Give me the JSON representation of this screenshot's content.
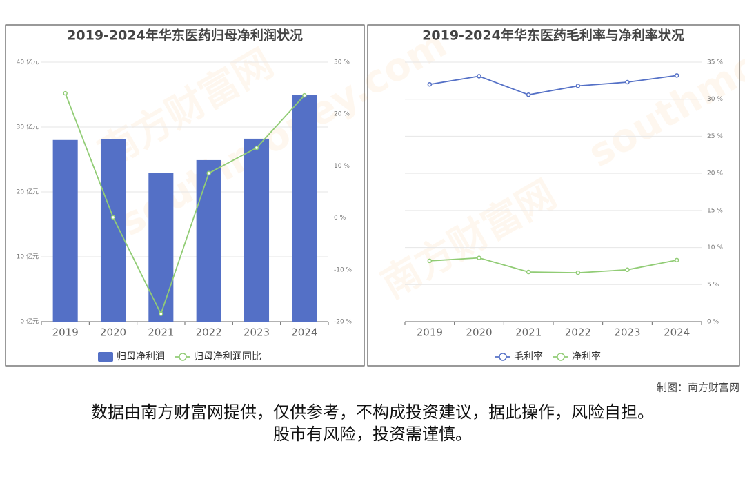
{
  "chart_data": [
    {
      "type": "bar",
      "title": "2019-2024年华东医药归母净利润状况",
      "categories": [
        "2019",
        "2020",
        "2021",
        "2022",
        "2023",
        "2024"
      ],
      "series": [
        {
          "name": "归母净利润",
          "type": "bar",
          "axis": "y",
          "color": "#5470c6",
          "values": [
            28.0,
            28.1,
            22.9,
            24.9,
            28.2,
            35.0
          ]
        },
        {
          "name": "归母净利润同比",
          "type": "line",
          "axis": "y2",
          "color": "#91cc75",
          "values": [
            24.0,
            0.1,
            -18.5,
            8.6,
            13.5,
            23.6
          ]
        }
      ],
      "ylim": [
        0,
        40
      ],
      "yticks": [
        {
          "value": 0,
          "label": "0 亿元"
        },
        {
          "value": 10,
          "label": "10 亿元"
        },
        {
          "value": 20,
          "label": "20 亿元"
        },
        {
          "value": 30,
          "label": "30 亿元"
        },
        {
          "value": 40,
          "label": "40 亿元"
        }
      ],
      "y2lim": [
        -20,
        30
      ],
      "y2ticks": [
        {
          "value": -20,
          "label": "-20 %"
        },
        {
          "value": -10,
          "label": "-10 %"
        },
        {
          "value": 0,
          "label": "0 %"
        },
        {
          "value": 10,
          "label": "10 %"
        },
        {
          "value": 20,
          "label": "20 %"
        },
        {
          "value": 30,
          "label": "30 %"
        }
      ],
      "grid": true
    },
    {
      "type": "line",
      "title": "2019-2024年华东医药毛利率与净利率状况",
      "categories": [
        "2019",
        "2020",
        "2021",
        "2022",
        "2023",
        "2024"
      ],
      "series": [
        {
          "name": "毛利率",
          "type": "line",
          "axis": "y2",
          "color": "#5470c6",
          "values": [
            32.0,
            33.1,
            30.6,
            31.8,
            32.3,
            33.2
          ]
        },
        {
          "name": "净利率",
          "type": "line",
          "axis": "y2",
          "color": "#91cc75",
          "values": [
            8.2,
            8.6,
            6.7,
            6.6,
            7.0,
            8.3
          ]
        }
      ],
      "y2lim": [
        0,
        35
      ],
      "y2ticks": [
        {
          "value": 0,
          "label": "0 %"
        },
        {
          "value": 5,
          "label": "5 %"
        },
        {
          "value": 10,
          "label": "10 %"
        },
        {
          "value": 15,
          "label": "15 %"
        },
        {
          "value": 20,
          "label": "20 %"
        },
        {
          "value": 25,
          "label": "25 %"
        },
        {
          "value": 30,
          "label": "30 %"
        },
        {
          "value": 35,
          "label": "35 %"
        }
      ],
      "grid": true
    }
  ],
  "watermark": [
    "南方财富网",
    "southmoney.com"
  ],
  "footer": {
    "credit": "制图：南方财富网",
    "disclaimer": [
      "数据由南方财富网提供，仅供参考，不构成投资建议，据此操作，风险自担。",
      "股市有风险，投资需谨慎。"
    ]
  }
}
